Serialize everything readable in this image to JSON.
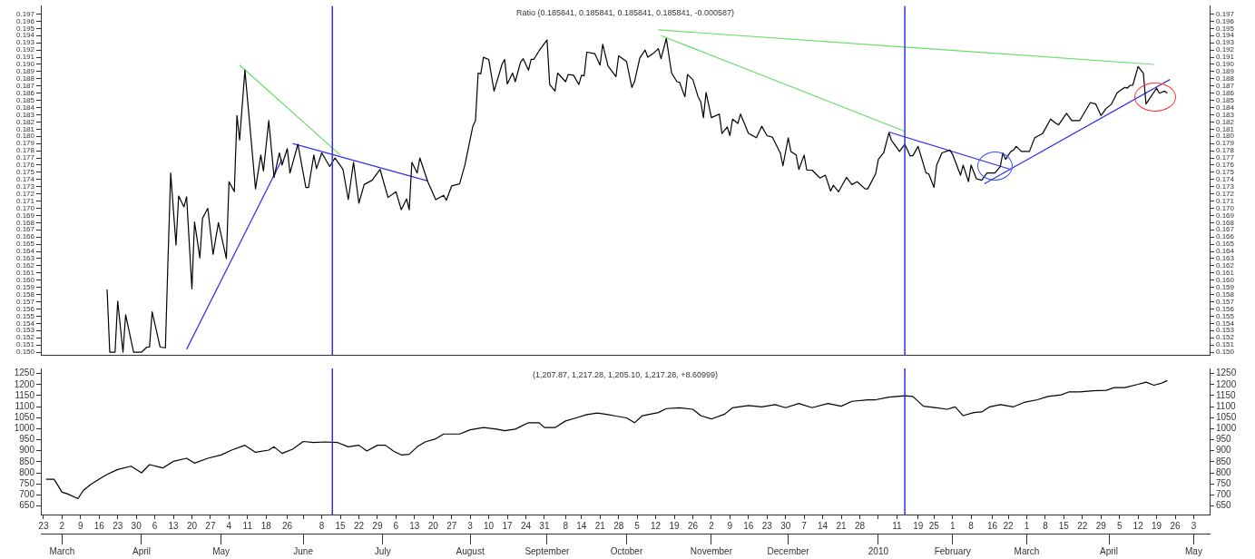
{
  "chart_data": [
    {
      "type": "line",
      "title": "Ratio (0.185841, 0.185841, 0.185841, 0.185841, -0.000587)",
      "tick_labels": "y",
      "xlim": [
        "2009-02-22",
        "2010-05-09"
      ],
      "ylim": [
        0.1496,
        0.1981
      ],
      "yticks": [
        {
          "value": 0.15,
          "label": "0.150"
        },
        {
          "value": 0.151,
          "label": "0.151"
        },
        {
          "value": 0.152,
          "label": "0.152"
        },
        {
          "value": 0.153,
          "label": "0.153"
        },
        {
          "value": 0.154,
          "label": "0.154"
        },
        {
          "value": 0.155,
          "label": "0.155"
        },
        {
          "value": 0.156,
          "label": "0.156"
        },
        {
          "value": 0.157,
          "label": "0.157"
        },
        {
          "value": 0.158,
          "label": "0.158"
        },
        {
          "value": 0.159,
          "label": "0.159"
        },
        {
          "value": 0.16,
          "label": "0.160"
        },
        {
          "value": 0.161,
          "label": "0.161"
        },
        {
          "value": 0.162,
          "label": "0.162"
        },
        {
          "value": 0.163,
          "label": "0.163"
        },
        {
          "value": 0.164,
          "label": "0.164"
        },
        {
          "value": 0.165,
          "label": "0.165"
        },
        {
          "value": 0.166,
          "label": "0.166"
        },
        {
          "value": 0.167,
          "label": "0.167"
        },
        {
          "value": 0.168,
          "label": "0.168"
        },
        {
          "value": 0.169,
          "label": "0.169"
        },
        {
          "value": 0.17,
          "label": "0.170"
        },
        {
          "value": 0.171,
          "label": "0.171"
        },
        {
          "value": 0.172,
          "label": "0.172"
        },
        {
          "value": 0.173,
          "label": "0.173"
        },
        {
          "value": 0.174,
          "label": "0.174"
        },
        {
          "value": 0.175,
          "label": "0.175"
        },
        {
          "value": 0.176,
          "label": "0.176"
        },
        {
          "value": 0.177,
          "label": "0.177"
        },
        {
          "value": 0.178,
          "label": "0.178"
        },
        {
          "value": 0.179,
          "label": "0.179"
        },
        {
          "value": 0.18,
          "label": "0.180"
        },
        {
          "value": 0.181,
          "label": "0.181"
        },
        {
          "value": 0.182,
          "label": "0.182"
        },
        {
          "value": 0.183,
          "label": "0.183"
        },
        {
          "value": 0.184,
          "label": "0.184"
        },
        {
          "value": 0.185,
          "label": "0.185"
        },
        {
          "value": 0.186,
          "label": "0.186"
        },
        {
          "value": 0.187,
          "label": "0.187"
        },
        {
          "value": 0.188,
          "label": "0.188"
        },
        {
          "value": 0.189,
          "label": "0.189"
        },
        {
          "value": 0.19,
          "label": "0.190"
        },
        {
          "value": 0.191,
          "label": "0.191"
        },
        {
          "value": 0.192,
          "label": "0.192"
        },
        {
          "value": 0.193,
          "label": "0.193"
        },
        {
          "value": 0.194,
          "label": "0.194"
        },
        {
          "value": 0.195,
          "label": "0.195"
        },
        {
          "value": 0.196,
          "label": "0.196"
        },
        {
          "value": 0.197,
          "label": "0.197"
        }
      ],
      "y2lim": [
        0.1496,
        0.1981
      ],
      "y2ticks": [
        {
          "value": 0.15,
          "label": "0.150"
        },
        {
          "value": 0.151,
          "label": "0.151"
        },
        {
          "value": 0.152,
          "label": "0.152"
        },
        {
          "value": 0.153,
          "label": "0.153"
        },
        {
          "value": 0.154,
          "label": "0.154"
        },
        {
          "value": 0.155,
          "label": "0.155"
        },
        {
          "value": 0.156,
          "label": "0.156"
        },
        {
          "value": 0.157,
          "label": "0.157"
        },
        {
          "value": 0.158,
          "label": "0.158"
        },
        {
          "value": 0.159,
          "label": "0.159"
        },
        {
          "value": 0.16,
          "label": "0.160"
        },
        {
          "value": 0.161,
          "label": "0.161"
        },
        {
          "value": 0.162,
          "label": "0.162"
        },
        {
          "value": 0.163,
          "label": "0.163"
        },
        {
          "value": 0.164,
          "label": "0.164"
        },
        {
          "value": 0.165,
          "label": "0.165"
        },
        {
          "value": 0.166,
          "label": "0.166"
        },
        {
          "value": 0.167,
          "label": "0.167"
        },
        {
          "value": 0.168,
          "label": "0.168"
        },
        {
          "value": 0.169,
          "label": "0.169"
        },
        {
          "value": 0.17,
          "label": "0.170"
        },
        {
          "value": 0.171,
          "label": "0.171"
        },
        {
          "value": 0.172,
          "label": "0.172"
        },
        {
          "value": 0.173,
          "label": "0.173"
        },
        {
          "value": 0.174,
          "label": "0.174"
        },
        {
          "value": 0.175,
          "label": "0.175"
        },
        {
          "value": 0.176,
          "label": "0.176"
        },
        {
          "value": 0.177,
          "label": "0.177"
        },
        {
          "value": 0.178,
          "label": "0.178"
        },
        {
          "value": 0.179,
          "label": "0.179"
        },
        {
          "value": 0.18,
          "label": "0.180"
        },
        {
          "value": 0.181,
          "label": "0.181"
        },
        {
          "value": 0.182,
          "label": "0.182"
        },
        {
          "value": 0.183,
          "label": "0.183"
        },
        {
          "value": 0.184,
          "label": "0.184"
        },
        {
          "value": 0.185,
          "label": "0.185"
        },
        {
          "value": 0.186,
          "label": "0.186"
        },
        {
          "value": 0.187,
          "label": "0.187"
        },
        {
          "value": 0.188,
          "label": "0.188"
        },
        {
          "value": 0.189,
          "label": "0.189"
        },
        {
          "value": 0.19,
          "label": "0.190"
        },
        {
          "value": 0.191,
          "label": "0.191"
        },
        {
          "value": 0.192,
          "label": "0.192"
        },
        {
          "value": 0.193,
          "label": "0.193"
        },
        {
          "value": 0.194,
          "label": "0.194"
        },
        {
          "value": 0.195,
          "label": "0.195"
        },
        {
          "value": 0.196,
          "label": "0.196"
        },
        {
          "value": 0.197,
          "label": "0.197"
        }
      ],
      "ref_lines": [
        {
          "axis": "x",
          "value": "2009-06-12",
          "color": "#3030f0"
        },
        {
          "axis": "x",
          "value": "2010-01-14",
          "color": "#3030f0"
        }
      ],
      "series": [
        {
          "color": "#000000",
          "x": [
            "2009-03-19",
            "2009-03-20",
            "2009-03-22",
            "2009-03-23",
            "2009-03-25",
            "2009-03-26",
            "2009-03-29",
            "2009-04-01",
            "2009-04-03",
            "2009-04-04",
            "2009-04-05",
            "2009-04-08",
            "2009-04-10",
            "2009-04-11",
            "2009-04-12",
            "2009-04-14",
            "2009-04-15",
            "2009-04-17",
            "2009-04-18",
            "2009-04-20",
            "2009-04-21",
            "2009-04-23",
            "2009-04-24",
            "2009-04-26",
            "2009-04-28",
            "2009-04-30",
            "2009-05-03",
            "2009-05-04",
            "2009-05-06",
            "2009-05-07",
            "2009-05-08",
            "2009-05-10",
            "2009-05-14",
            "2009-05-16",
            "2009-05-17",
            "2009-05-19",
            "2009-05-21",
            "2009-05-23",
            "2009-05-24",
            "2009-05-26",
            "2009-05-27",
            "2009-05-30",
            "2009-06-02",
            "2009-06-03",
            "2009-06-05",
            "2009-06-06",
            "2009-06-08",
            "2009-06-11",
            "2009-06-13",
            "2009-06-16",
            "2009-06-18",
            "2009-06-20",
            "2009-06-22",
            "2009-06-24",
            "2009-06-27",
            "2009-06-30",
            "2009-07-03",
            "2009-07-06",
            "2009-07-08",
            "2009-07-10",
            "2009-07-11",
            "2009-07-12",
            "2009-07-14",
            "2009-07-15",
            "2009-07-18",
            "2009-07-21",
            "2009-07-24",
            "2009-07-25",
            "2009-07-27",
            "2009-07-30",
            "2009-08-01",
            "2009-08-04",
            "2009-08-05",
            "2009-08-06",
            "2009-08-07",
            "2009-08-08",
            "2009-08-10",
            "2009-08-12",
            "2009-08-15",
            "2009-08-16",
            "2009-08-17",
            "2009-08-19",
            "2009-08-20",
            "2009-08-22",
            "2009-08-23",
            "2009-08-25",
            "2009-08-26",
            "2009-08-27",
            "2009-08-29",
            "2009-09-01",
            "2009-09-02",
            "2009-09-04",
            "2009-09-05",
            "2009-09-08",
            "2009-09-09",
            "2009-09-11",
            "2009-09-13",
            "2009-09-14",
            "2009-09-15",
            "2009-09-16",
            "2009-09-19",
            "2009-09-21",
            "2009-09-22",
            "2009-09-24",
            "2009-09-27",
            "2009-09-28",
            "2009-10-01",
            "2009-10-03",
            "2009-10-04",
            "2009-10-06",
            "2009-10-08",
            "2009-10-09",
            "2009-10-11",
            "2009-10-13",
            "2009-10-14",
            "2009-10-16",
            "2009-10-18",
            "2009-10-20",
            "2009-10-21",
            "2009-10-23",
            "2009-10-24",
            "2009-10-26",
            "2009-10-28",
            "2009-10-29",
            "2009-10-30",
            "2009-10-31",
            "2009-11-02",
            "2009-11-05",
            "2009-11-06",
            "2009-11-08",
            "2009-11-09",
            "2009-11-10",
            "2009-11-12",
            "2009-11-13",
            "2009-11-16",
            "2009-11-19",
            "2009-11-21",
            "2009-11-23",
            "2009-11-25",
            "2009-11-28",
            "2009-11-29",
            "2009-12-01",
            "2009-12-02",
            "2009-12-04",
            "2009-12-05",
            "2009-12-07",
            "2009-12-08",
            "2009-12-10",
            "2009-12-13",
            "2009-12-15",
            "2009-12-17",
            "2009-12-18",
            "2009-12-20",
            "2009-12-23",
            "2009-12-25",
            "2009-12-27",
            "2009-12-30",
            "2009-12-31",
            "2010-01-03",
            "2010-01-04",
            "2010-01-06",
            "2010-01-08",
            "2010-01-09",
            "2010-01-10",
            "2010-01-12",
            "2010-01-14",
            "2010-01-16",
            "2010-01-17",
            "2010-01-19",
            "2010-01-22",
            "2010-01-23",
            "2010-01-25",
            "2010-01-26",
            "2010-01-28",
            "2010-01-31",
            "2010-02-01",
            "2010-02-04",
            "2010-02-05",
            "2010-02-07",
            "2010-02-08",
            "2010-02-10",
            "2010-02-12",
            "2010-02-14",
            "2010-02-17",
            "2010-02-19",
            "2010-02-20",
            "2010-02-21",
            "2010-02-23",
            "2010-02-24",
            "2010-02-25",
            "2010-02-27",
            "2010-03-02",
            "2010-03-04",
            "2010-03-06",
            "2010-03-07",
            "2010-03-10",
            "2010-03-12",
            "2010-03-13",
            "2010-03-16",
            "2010-03-18",
            "2010-03-21",
            "2010-03-25",
            "2010-03-27",
            "2010-03-29",
            "2010-03-31",
            "2010-04-02",
            "2010-04-04",
            "2010-04-05",
            "2010-04-07",
            "2010-04-08",
            "2010-04-09",
            "2010-04-10",
            "2010-04-12",
            "2010-04-14",
            "2010-04-15",
            "2010-04-19",
            "2010-04-20",
            "2010-04-22",
            "2010-04-23"
          ],
          "values": [
            0.1587,
            0.15,
            0.15,
            0.1571,
            0.15,
            0.1552,
            0.15,
            0.15,
            0.1507,
            0.1507,
            0.1556,
            0.1507,
            0.1506,
            0.1631,
            0.1749,
            0.1649,
            0.1717,
            0.1702,
            0.1716,
            0.1588,
            0.1681,
            0.1631,
            0.1686,
            0.17,
            0.1636,
            0.168,
            0.163,
            0.1737,
            0.1723,
            0.1829,
            0.1795,
            0.1892,
            0.1727,
            0.1774,
            0.1752,
            0.1822,
            0.1743,
            0.1777,
            0.176,
            0.1783,
            0.1749,
            0.1789,
            0.1729,
            0.1729,
            0.1774,
            0.1755,
            0.1777,
            0.1758,
            0.177,
            0.1754,
            0.1712,
            0.1764,
            0.1707,
            0.1733,
            0.1739,
            0.1754,
            0.1715,
            0.1723,
            0.1698,
            0.1713,
            0.1698,
            0.1764,
            0.1749,
            0.177,
            0.1737,
            0.1712,
            0.1718,
            0.1711,
            0.1731,
            0.1734,
            0.176,
            0.1814,
            0.1822,
            0.1888,
            0.1887,
            0.191,
            0.1907,
            0.1863,
            0.19,
            0.1907,
            0.1873,
            0.1888,
            0.1876,
            0.1903,
            0.1908,
            0.1892,
            0.1907,
            0.1907,
            0.1919,
            0.1934,
            0.1872,
            0.1863,
            0.1888,
            0.1876,
            0.1886,
            0.1885,
            0.1872,
            0.1885,
            0.1884,
            0.1917,
            0.1915,
            0.1899,
            0.1928,
            0.1898,
            0.1883,
            0.1912,
            0.1904,
            0.1868,
            0.1876,
            0.1909,
            0.192,
            0.191,
            0.1915,
            0.1922,
            0.1908,
            0.1936,
            0.1888,
            0.1876,
            0.1875,
            0.1855,
            0.1886,
            0.1879,
            0.1855,
            0.1848,
            0.1826,
            0.1861,
            0.1826,
            0.1831,
            0.1804,
            0.1813,
            0.1801,
            0.1824,
            0.1818,
            0.1831,
            0.1804,
            0.1798,
            0.1814,
            0.1801,
            0.1799,
            0.1777,
            0.1759,
            0.1798,
            0.1779,
            0.1774,
            0.1754,
            0.1774,
            0.1753,
            0.1753,
            0.1742,
            0.1746,
            0.1724,
            0.1732,
            0.1723,
            0.1743,
            0.1733,
            0.1737,
            0.1727,
            0.1727,
            0.1748,
            0.1768,
            0.1777,
            0.1805,
            0.1794,
            0.1789,
            0.1779,
            0.1789,
            0.1773,
            0.1773,
            0.1786,
            0.1749,
            0.1748,
            0.1729,
            0.176,
            0.1777,
            0.1781,
            0.1775,
            0.1746,
            0.176,
            0.1737,
            0.176,
            0.1741,
            0.1739,
            0.1749,
            0.1749,
            0.1758,
            0.1777,
            0.1768,
            0.1779,
            0.1781,
            0.1786,
            0.1779,
            0.1779,
            0.1798,
            0.1802,
            0.1804,
            0.1824,
            0.1818,
            0.1816,
            0.1832,
            0.1822,
            0.1822,
            0.1847,
            0.1845,
            0.1829,
            0.1839,
            0.1845,
            0.186,
            0.1863,
            0.1868,
            0.1867,
            0.1871,
            0.1871,
            0.1897,
            0.1888,
            0.1845,
            0.1867,
            0.186,
            0.1863,
            0.186
          ]
        },
        {
          "type": "line",
          "color": "#66dd66",
          "x": [
            "2009-05-08",
            "2009-06-15"
          ],
          "values": [
            0.1899,
            0.1774
          ]
        },
        {
          "type": "line",
          "color": "#3030f0",
          "x": [
            "2009-04-18",
            "2009-05-24"
          ],
          "values": [
            0.1504,
            0.1768
          ]
        },
        {
          "type": "line",
          "color": "#3030f0",
          "x": [
            "2009-05-28",
            "2009-07-18"
          ],
          "values": [
            0.179,
            0.1738
          ]
        },
        {
          "type": "line",
          "color": "#66dd66",
          "x": [
            "2009-10-14",
            "2010-01-14"
          ],
          "values": [
            0.194,
            0.1807
          ]
        },
        {
          "type": "line",
          "color": "#66dd66",
          "x": [
            "2009-10-13",
            "2010-04-18"
          ],
          "values": [
            0.1948,
            0.19
          ]
        },
        {
          "type": "line",
          "color": "#3030f0",
          "x": [
            "2010-01-08",
            "2010-02-23"
          ],
          "values": [
            0.1806,
            0.1754
          ]
        },
        {
          "type": "line",
          "color": "#3030f0",
          "x": [
            "2010-02-13",
            "2010-04-24"
          ],
          "values": [
            0.1734,
            0.1879
          ]
        }
      ]
    },
    {
      "type": "line",
      "title": "(1,207.87, 1,217.28, 1,205.10, 1,217.28, +8.60999)",
      "xlim": [
        "2009-02-22",
        "2010-05-09"
      ],
      "xticks": [
        {
          "value": "2009-02-23",
          "label": "23"
        },
        {
          "value": "2009-03-02",
          "label": "2"
        },
        {
          "value": "2009-03-09",
          "label": "9"
        },
        {
          "value": "2009-03-16",
          "label": "16"
        },
        {
          "value": "2009-03-23",
          "label": "23"
        },
        {
          "value": "2009-03-30",
          "label": "30"
        },
        {
          "value": "2009-04-06",
          "label": "6"
        },
        {
          "value": "2009-04-13",
          "label": "13"
        },
        {
          "value": "2009-04-20",
          "label": "20"
        },
        {
          "value": "2009-04-27",
          "label": "27"
        },
        {
          "value": "2009-05-04",
          "label": "4"
        },
        {
          "value": "2009-05-11",
          "label": "11"
        },
        {
          "value": "2009-05-18",
          "label": "18"
        },
        {
          "value": "2009-05-26",
          "label": "26"
        },
        {
          "value": "2009-06-01",
          "label": null
        },
        {
          "value": "2009-06-08",
          "label": "8"
        },
        {
          "value": "2009-06-15",
          "label": "15"
        },
        {
          "value": "2009-06-22",
          "label": "22"
        },
        {
          "value": "2009-06-29",
          "label": "29"
        },
        {
          "value": "2009-07-06",
          "label": "6"
        },
        {
          "value": "2009-07-13",
          "label": "13"
        },
        {
          "value": "2009-07-20",
          "label": "20"
        },
        {
          "value": "2009-07-27",
          "label": "27"
        },
        {
          "value": "2009-08-03",
          "label": "3"
        },
        {
          "value": "2009-08-10",
          "label": "10"
        },
        {
          "value": "2009-08-17",
          "label": "17"
        },
        {
          "value": "2009-08-24",
          "label": "24"
        },
        {
          "value": "2009-08-31",
          "label": "31"
        },
        {
          "value": "2009-09-08",
          "label": "8"
        },
        {
          "value": "2009-09-14",
          "label": "14"
        },
        {
          "value": "2009-09-21",
          "label": "21"
        },
        {
          "value": "2009-09-28",
          "label": "28"
        },
        {
          "value": "2009-10-05",
          "label": "5"
        },
        {
          "value": "2009-10-12",
          "label": "12"
        },
        {
          "value": "2009-10-19",
          "label": "19"
        },
        {
          "value": "2009-10-26",
          "label": "26"
        },
        {
          "value": "2009-11-02",
          "label": "2"
        },
        {
          "value": "2009-11-09",
          "label": "9"
        },
        {
          "value": "2009-11-16",
          "label": "16"
        },
        {
          "value": "2009-11-23",
          "label": "23"
        },
        {
          "value": "2009-11-30",
          "label": "30"
        },
        {
          "value": "2009-12-07",
          "label": "7"
        },
        {
          "value": "2009-12-14",
          "label": "14"
        },
        {
          "value": "2009-12-21",
          "label": "21"
        },
        {
          "value": "2009-12-28",
          "label": "28"
        },
        {
          "value": "2010-01-04",
          "label": null
        },
        {
          "value": "2010-01-11",
          "label": "11"
        },
        {
          "value": "2010-01-19",
          "label": "19"
        },
        {
          "value": "2010-01-25",
          "label": "25"
        },
        {
          "value": "2010-02-01",
          "label": "1"
        },
        {
          "value": "2010-02-08",
          "label": "8"
        },
        {
          "value": "2010-02-16",
          "label": "16"
        },
        {
          "value": "2010-02-22",
          "label": "22"
        },
        {
          "value": "2010-03-01",
          "label": "1"
        },
        {
          "value": "2010-03-08",
          "label": "8"
        },
        {
          "value": "2010-03-15",
          "label": "15"
        },
        {
          "value": "2010-03-22",
          "label": "22"
        },
        {
          "value": "2010-03-29",
          "label": "29"
        },
        {
          "value": "2010-04-05",
          "label": "5"
        },
        {
          "value": "2010-04-12",
          "label": "12"
        },
        {
          "value": "2010-04-19",
          "label": "19"
        },
        {
          "value": "2010-04-26",
          "label": "26"
        },
        {
          "value": "2010-05-03",
          "label": "3"
        }
      ],
      "x2lim": [
        "2009-02-22",
        "2010-05-09"
      ],
      "x2ticks": [
        {
          "value": "2009-03-02",
          "label": "March"
        },
        {
          "value": "2009-04-01",
          "label": "April"
        },
        {
          "value": "2009-05-01",
          "label": "May"
        },
        {
          "value": "2009-06-01",
          "label": "June"
        },
        {
          "value": "2009-07-01",
          "label": "July"
        },
        {
          "value": "2009-08-03",
          "label": "August"
        },
        {
          "value": "2009-09-01",
          "label": "September"
        },
        {
          "value": "2009-10-01",
          "label": "October"
        },
        {
          "value": "2009-11-02",
          "label": "November"
        },
        {
          "value": "2009-12-01",
          "label": "December"
        },
        {
          "value": "2010-01-04",
          "label": "2010"
        },
        {
          "value": "2010-02-01",
          "label": "February"
        },
        {
          "value": "2010-03-01",
          "label": "March"
        },
        {
          "value": "2010-04-01",
          "label": "April"
        },
        {
          "value": "2010-05-03",
          "label": "May"
        }
      ],
      "ylim": [
        611,
        1273
      ],
      "yticks": [
        650,
        700,
        750,
        800,
        850,
        900,
        950,
        1000,
        1050,
        1100,
        1150,
        1200,
        1250
      ],
      "y2lim": [
        611,
        1273
      ],
      "y2ticks": [
        650,
        700,
        750,
        800,
        850,
        900,
        950,
        1000,
        1050,
        1100,
        1150,
        1200,
        1250
      ],
      "ref_lines": [
        {
          "axis": "x",
          "value": "2009-06-12",
          "color": "#3030f0"
        },
        {
          "axis": "x",
          "value": "2010-01-14",
          "color": "#3030f0"
        }
      ],
      "series": [
        {
          "color": "#000000",
          "x": [
            "2009-02-24",
            "2009-02-27",
            "2009-03-02",
            "2009-03-04",
            "2009-03-08",
            "2009-03-10",
            "2009-03-13",
            "2009-03-16",
            "2009-03-19",
            "2009-03-23",
            "2009-03-28",
            "2009-04-01",
            "2009-04-04",
            "2009-04-09",
            "2009-04-13",
            "2009-04-18",
            "2009-04-21",
            "2009-04-26",
            "2009-05-01",
            "2009-05-05",
            "2009-05-10",
            "2009-05-14",
            "2009-05-19",
            "2009-05-21",
            "2009-05-24",
            "2009-05-28",
            "2009-06-01",
            "2009-06-05",
            "2009-06-09",
            "2009-06-14",
            "2009-06-18",
            "2009-06-22",
            "2009-06-25",
            "2009-06-29",
            "2009-07-02",
            "2009-07-05",
            "2009-07-08",
            "2009-07-11",
            "2009-07-14",
            "2009-07-17",
            "2009-07-21",
            "2009-07-24",
            "2009-07-30",
            "2009-08-03",
            "2009-08-08",
            "2009-08-13",
            "2009-08-16",
            "2009-08-20",
            "2009-08-25",
            "2009-08-29",
            "2009-08-31",
            "2009-09-04",
            "2009-09-08",
            "2009-09-12",
            "2009-09-16",
            "2009-09-20",
            "2009-09-24",
            "2009-09-27",
            "2009-10-01",
            "2009-10-04",
            "2009-10-07",
            "2009-10-13",
            "2009-10-16",
            "2009-10-21",
            "2009-10-26",
            "2009-10-29",
            "2009-11-02",
            "2009-11-07",
            "2009-11-10",
            "2009-11-16",
            "2009-11-21",
            "2009-11-26",
            "2009-11-30",
            "2009-12-05",
            "2009-12-10",
            "2009-12-16",
            "2009-12-21",
            "2009-12-25",
            "2009-12-31",
            "2010-01-03",
            "2010-01-08",
            "2010-01-14",
            "2010-01-17",
            "2010-01-21",
            "2010-01-26",
            "2010-01-30",
            "2010-02-02",
            "2010-02-05",
            "2010-02-09",
            "2010-02-12",
            "2010-02-15",
            "2010-02-19",
            "2010-02-24",
            "2010-02-28",
            "2010-03-05",
            "2010-03-09",
            "2010-03-14",
            "2010-03-17",
            "2010-03-21",
            "2010-03-26",
            "2010-03-31",
            "2010-04-03",
            "2010-04-07",
            "2010-04-12",
            "2010-04-15",
            "2010-04-18",
            "2010-04-21",
            "2010-04-23"
          ],
          "values": [
            771,
            771,
            712,
            705,
            683,
            720,
            749,
            771,
            793,
            815,
            830,
            800,
            837,
            822,
            852,
            866,
            844,
            866,
            881,
            903,
            925,
            893,
            903,
            918,
            888,
            907,
            942,
            937,
            940,
            937,
            918,
            925,
            899,
            925,
            925,
            899,
            881,
            884,
            918,
            940,
            954,
            976,
            976,
            995,
            1005,
            998,
            991,
            998,
            1027,
            1027,
            1005,
            1005,
            1035,
            1049,
            1064,
            1071,
            1064,
            1057,
            1049,
            1027,
            1059,
            1073,
            1091,
            1095,
            1088,
            1059,
            1044,
            1066,
            1095,
            1105,
            1099,
            1109,
            1095,
            1114,
            1095,
            1114,
            1102,
            1124,
            1131,
            1131,
            1143,
            1149,
            1146,
            1102,
            1095,
            1088,
            1099,
            1059,
            1073,
            1076,
            1099,
            1109,
            1099,
            1119,
            1131,
            1146,
            1153,
            1167,
            1167,
            1172,
            1174,
            1186,
            1186,
            1201,
            1211,
            1197,
            1207,
            1218
          ]
        }
      ]
    }
  ]
}
